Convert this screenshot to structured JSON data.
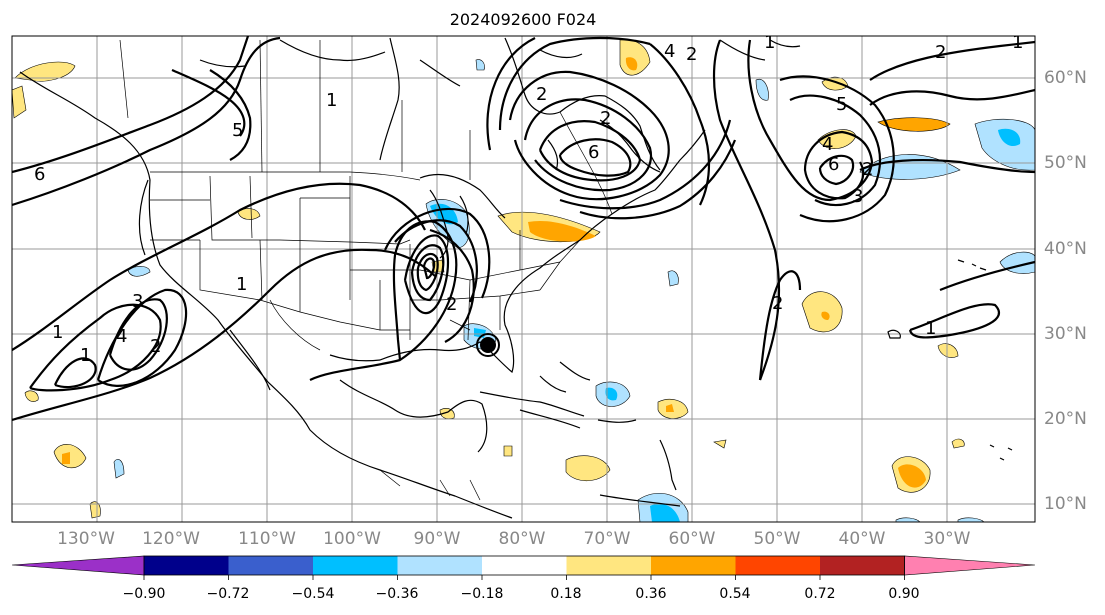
{
  "title": "2024092600 F024",
  "lon_labels": [
    "130°W",
    "120°W",
    "110°W",
    "100°W",
    "90°W",
    "80°W",
    "70°W",
    "60°W",
    "50°W",
    "40°W",
    "30°W"
  ],
  "lat_labels": [
    "60°N",
    "50°N",
    "40°N",
    "30°N",
    "20°N",
    "10°N"
  ],
  "colorbar": {
    "ticks": [
      "−0.90",
      "−0.72",
      "−0.54",
      "−0.36",
      "−0.18",
      "0.18",
      "0.36",
      "0.54",
      "0.72",
      "0.90"
    ],
    "colors": [
      "#9b30c8",
      "#00008b",
      "#3a5fcd",
      "#00bfff",
      "#b0e2ff",
      "#ffffff",
      "#ffe680",
      "#ffa500",
      "#ff4500",
      "#b22222",
      "#ff80b0"
    ]
  },
  "contour_labels": [
    "1",
    "1",
    "1",
    "2",
    "3",
    "4",
    "5",
    "6",
    "1",
    "2",
    "2",
    "4",
    "6",
    "2",
    "1",
    "1",
    "2",
    "2",
    "4",
    "5",
    "6",
    "2",
    "3",
    "2",
    "1"
  ]
}
